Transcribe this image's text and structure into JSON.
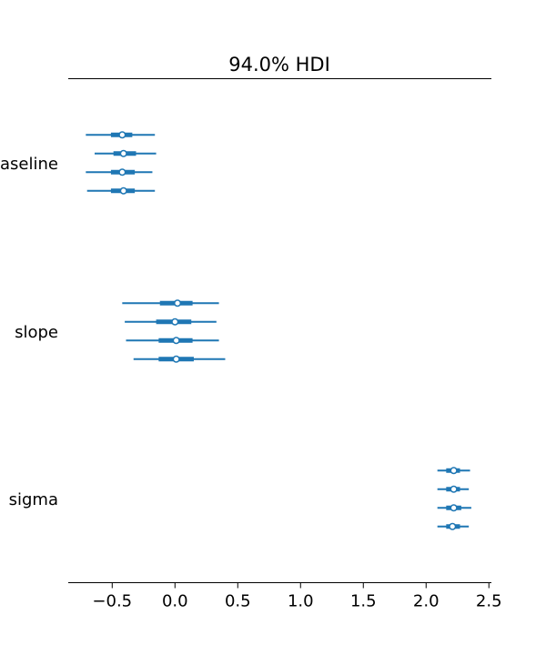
{
  "chart_data": {
    "type": "forest",
    "title": "94.0% HDI",
    "xlabel": "",
    "ylabel": "",
    "xlim": [
      -0.85,
      2.52
    ],
    "x_ticks": [
      -0.5,
      0.0,
      0.5,
      1.0,
      1.5,
      2.0,
      2.5
    ],
    "x_tick_labels": [
      "−0.5",
      "0.0",
      "0.5",
      "1.0",
      "1.5",
      "2.0",
      "2.5"
    ],
    "grid": false,
    "line_color": "#1f77b4",
    "parameters": [
      {
        "label": "baseline",
        "chains": [
          {
            "mean": -0.42,
            "hdi": [
              -0.71,
              -0.16
            ],
            "iqr": [
              -0.51,
              -0.34
            ]
          },
          {
            "mean": -0.41,
            "hdi": [
              -0.64,
              -0.15
            ],
            "iqr": [
              -0.49,
              -0.31
            ]
          },
          {
            "mean": -0.42,
            "hdi": [
              -0.71,
              -0.18
            ],
            "iqr": [
              -0.51,
              -0.32
            ]
          },
          {
            "mean": -0.41,
            "hdi": [
              -0.7,
              -0.16
            ],
            "iqr": [
              -0.51,
              -0.32
            ]
          }
        ]
      },
      {
        "label": "slope",
        "chains": [
          {
            "mean": 0.02,
            "hdi": [
              -0.42,
              0.35
            ],
            "iqr": [
              -0.12,
              0.14
            ]
          },
          {
            "mean": 0.0,
            "hdi": [
              -0.4,
              0.33
            ],
            "iqr": [
              -0.15,
              0.13
            ]
          },
          {
            "mean": 0.01,
            "hdi": [
              -0.39,
              0.35
            ],
            "iqr": [
              -0.13,
              0.14
            ]
          },
          {
            "mean": 0.01,
            "hdi": [
              -0.33,
              0.4
            ],
            "iqr": [
              -0.13,
              0.15
            ]
          }
        ]
      },
      {
        "label": "sigma",
        "chains": [
          {
            "mean": 2.22,
            "hdi": [
              2.09,
              2.35
            ],
            "iqr": [
              2.16,
              2.27
            ]
          },
          {
            "mean": 2.22,
            "hdi": [
              2.09,
              2.34
            ],
            "iqr": [
              2.16,
              2.27
            ]
          },
          {
            "mean": 2.22,
            "hdi": [
              2.09,
              2.36
            ],
            "iqr": [
              2.16,
              2.28
            ]
          },
          {
            "mean": 2.21,
            "hdi": [
              2.09,
              2.34
            ],
            "iqr": [
              2.16,
              2.27
            ]
          }
        ]
      }
    ]
  }
}
